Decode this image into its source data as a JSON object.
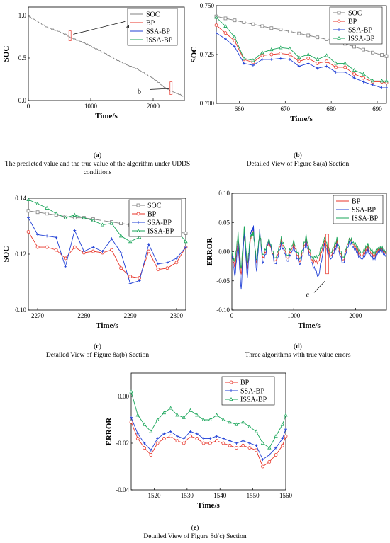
{
  "colors": {
    "SOC": "#808080",
    "BP": "#e8352a",
    "SSA-BP": "#1f3fd6",
    "ISSA-BP": "#1aa65a"
  },
  "captions": [
    {
      "id": "a",
      "letter": "a",
      "text": "The predicted value and the true value of the algorithm under UDDS conditions"
    },
    {
      "id": "b",
      "letter": "b",
      "text": "Detailed View of Figure 8a(a) Section"
    },
    {
      "id": "c",
      "letter": "c",
      "text": "Detailed View of Figure 8a(b) Section"
    },
    {
      "id": "d",
      "letter": "d",
      "text": "Three algorithms with true value errors"
    },
    {
      "id": "e",
      "letter": "e",
      "text": "Detailed View of Figure 8d(c) Section"
    }
  ],
  "chart_data": [
    {
      "id": "a",
      "type": "line",
      "xlabel": "Time/s",
      "ylabel": "SOC",
      "xlim": [
        0,
        2500
      ],
      "ylim": [
        0,
        1.1
      ],
      "xticks": [
        "0",
        "1000",
        "2000"
      ],
      "yticks": [
        "0.0",
        "0.5",
        "1.0"
      ],
      "legend": [
        "SOC",
        "BP",
        "SSA-BP",
        "ISSA-BP"
      ],
      "annotations": [
        "a",
        "b"
      ],
      "series": [
        {
          "name": "SOC",
          "x": [
            0,
            100,
            250,
            400,
            550,
            700,
            850,
            1000,
            1150,
            1300,
            1450,
            1600,
            1750,
            1900,
            2050,
            2200,
            2350,
            2480
          ],
          "values": [
            1.0,
            0.95,
            0.88,
            0.84,
            0.79,
            0.74,
            0.69,
            0.64,
            0.59,
            0.52,
            0.47,
            0.41,
            0.37,
            0.31,
            0.23,
            0.15,
            0.09,
            0.05
          ]
        }
      ]
    },
    {
      "id": "b",
      "type": "line",
      "xlabel": "Time/s",
      "ylabel": "SOC",
      "xlim": [
        655,
        692
      ],
      "ylim": [
        0.7,
        0.75
      ],
      "xticks": [
        "660",
        "670",
        "680",
        "690"
      ],
      "yticks": [
        "0.700",
        "0.725",
        "0.750"
      ],
      "legend": [
        "SOC",
        "BP",
        "SSA-BP",
        "ISSA-BP"
      ],
      "x": [
        655,
        657,
        659,
        661,
        663,
        665,
        667,
        669,
        671,
        673,
        675,
        677,
        679,
        681,
        683,
        685,
        687,
        689,
        691,
        692
      ],
      "series": [
        {
          "name": "SOC",
          "values": [
            0.7445,
            0.7435,
            0.7425,
            0.7415,
            0.7405,
            0.7395,
            0.7385,
            0.7378,
            0.7368,
            0.7358,
            0.7348,
            0.7338,
            0.7328,
            0.7318,
            0.7305,
            0.729,
            0.7275,
            0.726,
            0.7248,
            0.7242
          ]
        },
        {
          "name": "BP",
          "values": [
            0.74,
            0.736,
            0.732,
            0.7225,
            0.721,
            0.7245,
            0.725,
            0.7255,
            0.725,
            0.7215,
            0.723,
            0.7205,
            0.7215,
            0.7185,
            0.7185,
            0.715,
            0.713,
            0.711,
            0.711,
            0.7105
          ]
        },
        {
          "name": "SSA-BP",
          "values": [
            0.736,
            0.733,
            0.729,
            0.7205,
            0.7195,
            0.7225,
            0.7225,
            0.723,
            0.7225,
            0.719,
            0.7205,
            0.718,
            0.719,
            0.716,
            0.716,
            0.713,
            0.711,
            0.7095,
            0.708,
            0.708
          ]
        },
        {
          "name": "ISSA-BP",
          "values": [
            0.744,
            0.7395,
            0.734,
            0.723,
            0.722,
            0.726,
            0.7275,
            0.7285,
            0.728,
            0.7235,
            0.725,
            0.7225,
            0.7245,
            0.7205,
            0.7205,
            0.717,
            0.715,
            0.7115,
            0.7115,
            0.7115
          ]
        }
      ]
    },
    {
      "id": "c",
      "type": "line",
      "xlabel": "Time/s",
      "ylabel": "SOC",
      "xlim": [
        2268,
        2302
      ],
      "ylim": [
        0.1,
        0.14
      ],
      "xticks": [
        "2270",
        "2280",
        "2290",
        "2300"
      ],
      "yticks": [
        "0.10",
        "0.12",
        "0.14"
      ],
      "legend": [
        "SOC",
        "BP",
        "SSA-BP",
        "ISSA-BP"
      ],
      "x": [
        2268,
        2270,
        2272,
        2274,
        2276,
        2278,
        2280,
        2282,
        2284,
        2286,
        2288,
        2290,
        2292,
        2294,
        2296,
        2298,
        2300,
        2302
      ],
      "series": [
        {
          "name": "SOC",
          "values": [
            0.1355,
            0.135,
            0.1345,
            0.134,
            0.1335,
            0.133,
            0.133,
            0.1325,
            0.132,
            0.1315,
            0.131,
            0.1305,
            0.13,
            0.1295,
            0.129,
            0.1285,
            0.128,
            0.1275
          ]
        },
        {
          "name": "BP",
          "values": [
            0.128,
            0.1225,
            0.1225,
            0.1215,
            0.1185,
            0.1225,
            0.1205,
            0.121,
            0.1205,
            0.1215,
            0.115,
            0.112,
            0.1115,
            0.121,
            0.1145,
            0.115,
            0.117,
            0.1225
          ]
        },
        {
          "name": "SSA-BP",
          "values": [
            0.133,
            0.127,
            0.1265,
            0.126,
            0.1155,
            0.1285,
            0.121,
            0.1225,
            0.121,
            0.1255,
            0.1205,
            0.1095,
            0.1105,
            0.1235,
            0.1165,
            0.117,
            0.1185,
            0.1225
          ]
        },
        {
          "name": "ISSA-BP",
          "values": [
            0.1395,
            0.138,
            0.1365,
            0.1345,
            0.133,
            0.134,
            0.133,
            0.132,
            0.1305,
            0.131,
            0.1265,
            0.1245,
            0.126,
            0.1295,
            0.1285,
            0.128,
            0.1285,
            0.1245
          ]
        }
      ]
    },
    {
      "id": "d",
      "type": "line",
      "xlabel": "Time/s",
      "ylabel": "ERROR",
      "xlim": [
        0,
        2500
      ],
      "ylim": [
        -0.1,
        0.1
      ],
      "xticks": [
        "0",
        "1000",
        "2000"
      ],
      "yticks": [
        "-0.10",
        "-0.05",
        "0.00",
        "0.05",
        "0.10"
      ],
      "legend": [
        "BP",
        "SSA-BP",
        "ISSA-BP"
      ],
      "annotations": [
        "c"
      ],
      "series": [
        {
          "name": "BP",
          "x": [
            0,
            50,
            100,
            150,
            200,
            250,
            300,
            350,
            400,
            450,
            500,
            600,
            700,
            800,
            900,
            1000,
            1100,
            1200,
            1300,
            1400,
            1500,
            1600,
            1700,
            1800,
            1900,
            2000,
            2100,
            2200,
            2300,
            2400,
            2500
          ],
          "values": [
            0.0,
            -0.03,
            0.02,
            -0.04,
            0.03,
            -0.03,
            0.02,
            0.035,
            -0.02,
            0.03,
            -0.01,
            0.015,
            -0.02,
            0.02,
            -0.015,
            0.015,
            -0.02,
            0.02,
            -0.015,
            -0.02,
            0.02,
            -0.01,
            0.015,
            -0.015,
            0.02,
            0.01,
            -0.01,
            0.005,
            -0.005,
            0.003,
            0.0
          ]
        },
        {
          "name": "SSA-BP",
          "x": [
            0,
            50,
            100,
            150,
            200,
            250,
            300,
            350,
            400,
            450,
            500,
            600,
            700,
            800,
            900,
            1000,
            1100,
            1200,
            1300,
            1400,
            1500,
            1600,
            1700,
            1800,
            1900,
            2000,
            2100,
            2200,
            2300,
            2400,
            2500
          ],
          "values": [
            0.0,
            -0.045,
            0.015,
            -0.065,
            0.035,
            -0.045,
            0.03,
            0.04,
            -0.035,
            0.035,
            -0.02,
            0.02,
            -0.025,
            0.015,
            -0.02,
            0.01,
            -0.025,
            0.015,
            -0.02,
            -0.045,
            0.015,
            -0.015,
            0.01,
            -0.02,
            0.015,
            0.005,
            -0.015,
            0.0,
            -0.01,
            0.0,
            -0.005
          ]
        },
        {
          "name": "ISSA-BP",
          "x": [
            0,
            50,
            100,
            150,
            200,
            250,
            300,
            350,
            400,
            450,
            500,
            600,
            700,
            800,
            900,
            1000,
            1100,
            1200,
            1300,
            1400,
            1500,
            1600,
            1700,
            1800,
            1900,
            2000,
            2100,
            2200,
            2300,
            2400,
            2500
          ],
          "values": [
            0.0,
            -0.02,
            0.03,
            -0.03,
            0.04,
            -0.02,
            0.025,
            0.03,
            -0.015,
            0.03,
            -0.005,
            0.02,
            -0.015,
            0.025,
            -0.01,
            0.02,
            -0.015,
            0.025,
            -0.01,
            -0.01,
            0.025,
            -0.005,
            0.02,
            -0.01,
            0.02,
            0.015,
            -0.005,
            0.01,
            0.0,
            0.005,
            0.002
          ]
        }
      ]
    },
    {
      "id": "e",
      "type": "line",
      "xlabel": "Time/s",
      "ylabel": "ERROR",
      "xlim": [
        1513,
        1560
      ],
      "ylim": [
        -0.04,
        0.01
      ],
      "xticks": [
        "1520",
        "1530",
        "1540",
        "1550",
        "1560"
      ],
      "yticks": [
        "-0.04",
        "-0.02",
        "0.00"
      ],
      "legend": [
        "BP",
        "SSA-BP",
        "ISSA-BP"
      ],
      "x": [
        1513,
        1515,
        1517,
        1519,
        1521,
        1523,
        1525,
        1527,
        1529,
        1531,
        1533,
        1535,
        1537,
        1539,
        1541,
        1543,
        1545,
        1547,
        1549,
        1551,
        1553,
        1555,
        1557,
        1559,
        1560
      ],
      "series": [
        {
          "name": "BP",
          "values": [
            -0.011,
            -0.018,
            -0.022,
            -0.025,
            -0.02,
            -0.018,
            -0.017,
            -0.019,
            -0.02,
            -0.017,
            -0.018,
            -0.02,
            -0.02,
            -0.019,
            -0.02,
            -0.021,
            -0.022,
            -0.021,
            -0.022,
            -0.023,
            -0.03,
            -0.028,
            -0.025,
            -0.021,
            -0.017
          ]
        },
        {
          "name": "SSA-BP",
          "values": [
            -0.009,
            -0.016,
            -0.02,
            -0.023,
            -0.018,
            -0.016,
            -0.015,
            -0.017,
            -0.018,
            -0.015,
            -0.016,
            -0.018,
            -0.018,
            -0.017,
            -0.018,
            -0.019,
            -0.02,
            -0.019,
            -0.02,
            -0.021,
            -0.027,
            -0.025,
            -0.022,
            -0.018,
            -0.014
          ]
        },
        {
          "name": "ISSA-BP",
          "values": [
            0.002,
            -0.008,
            -0.012,
            -0.015,
            -0.01,
            -0.007,
            -0.005,
            -0.008,
            -0.009,
            -0.006,
            -0.008,
            -0.01,
            -0.01,
            -0.008,
            -0.01,
            -0.011,
            -0.012,
            -0.011,
            -0.013,
            -0.015,
            -0.02,
            -0.022,
            -0.017,
            -0.012,
            -0.008
          ]
        }
      ]
    }
  ]
}
